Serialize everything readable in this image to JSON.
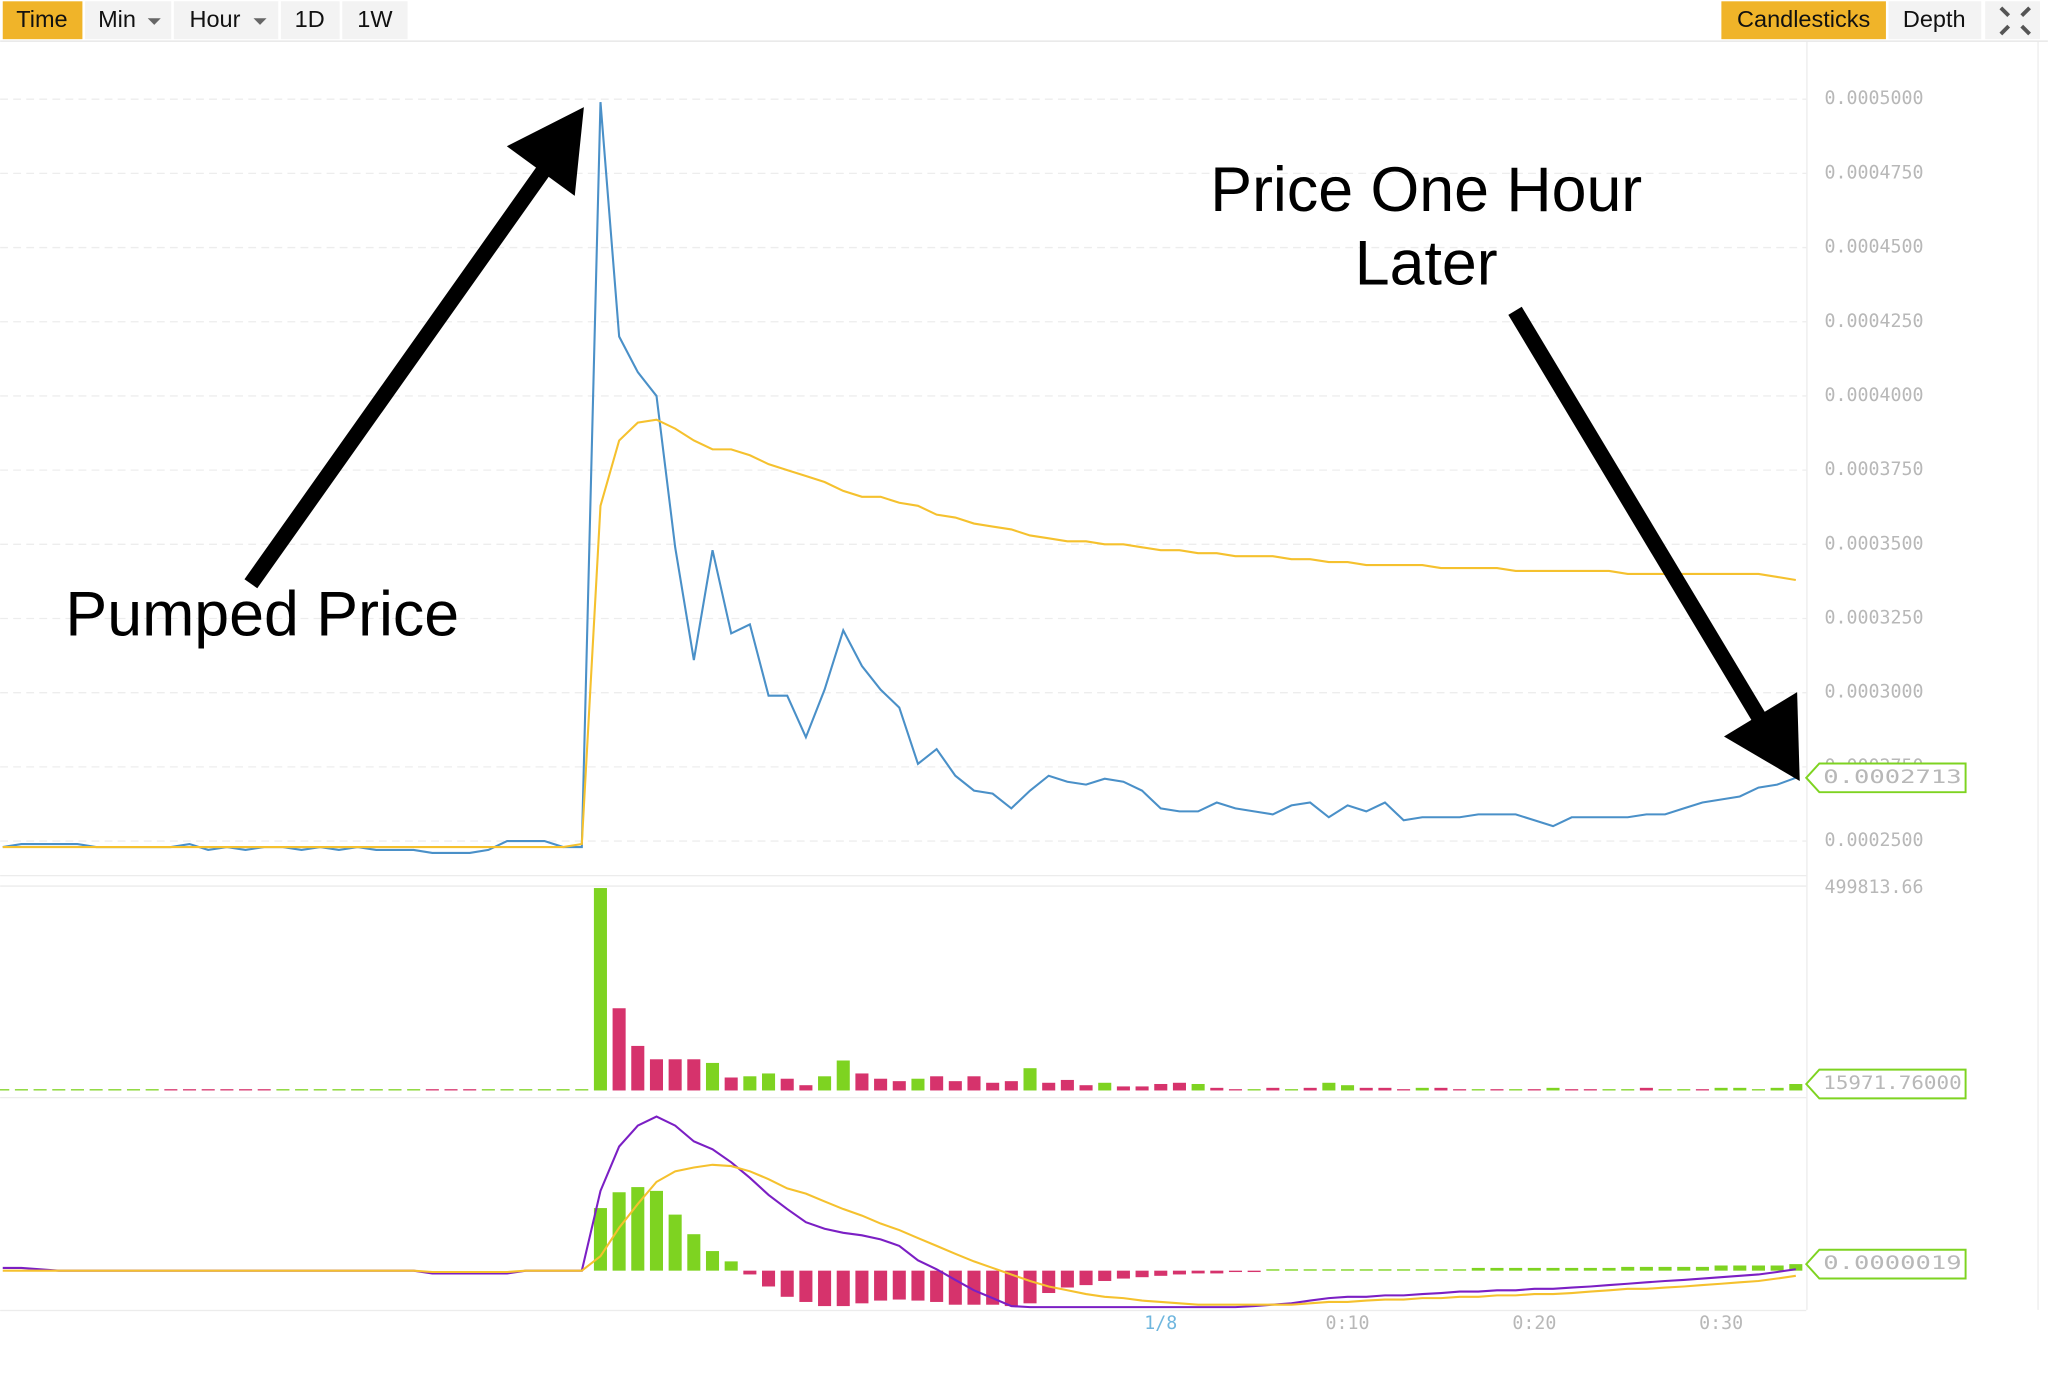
{
  "toolbar": {
    "left": [
      "Time",
      "Min",
      "Hour",
      "1D",
      "1W"
    ],
    "right": [
      "Candlesticks",
      "Depth"
    ]
  },
  "annotations": [
    "Pumped Price",
    "Price One Hour",
    "Later"
  ],
  "chart_data": [
    {
      "type": "line",
      "series": [
        {
          "color": "#4a90c8",
          "values": [
            0.000248,
            0.000249,
            0.000249,
            0.000249,
            0.000249,
            0.000248,
            0.000248,
            0.000248,
            0.000248,
            0.000248,
            0.000249,
            0.000247,
            0.000248,
            0.000247,
            0.000248,
            0.000248,
            0.000247,
            0.000248,
            0.000247,
            0.000248,
            0.000247,
            0.000247,
            0.000247,
            0.000246,
            0.000246,
            0.000246,
            0.000247,
            0.00025,
            0.00025,
            0.00025,
            0.000248,
            0.000248,
            0.000499,
            0.00042,
            0.000408,
            0.0004,
            0.000349,
            0.000311,
            0.000348,
            0.00032,
            0.000323,
            0.000299,
            0.000299,
            0.000285,
            0.000301,
            0.000321,
            0.000309,
            0.000301,
            0.000295,
            0.000276,
            0.000281,
            0.000272,
            0.000267,
            0.000266,
            0.000261,
            0.000267,
            0.000272,
            0.00027,
            0.000269,
            0.000271,
            0.00027,
            0.000267,
            0.000261,
            0.00026,
            0.00026,
            0.000263,
            0.000261,
            0.00026,
            0.000259,
            0.000262,
            0.000263,
            0.000258,
            0.000262,
            0.00026,
            0.000263,
            0.000257,
            0.000258,
            0.000258,
            0.000258,
            0.000259,
            0.000259,
            0.000259,
            0.000257,
            0.000255,
            0.000258,
            0.000258,
            0.000258,
            0.000258,
            0.000259,
            0.000259,
            0.000261,
            0.000263,
            0.000264,
            0.000265,
            0.000268,
            0.000269,
            0.0002713
          ]
        },
        {
          "color": "#f5c12e",
          "values": [
            0.000248,
            0.000248,
            0.000248,
            0.000248,
            0.000248,
            0.000248,
            0.000248,
            0.000248,
            0.000248,
            0.000248,
            0.000248,
            0.000248,
            0.000248,
            0.000248,
            0.000248,
            0.000248,
            0.000248,
            0.000248,
            0.000248,
            0.000248,
            0.000248,
            0.000248,
            0.000248,
            0.000248,
            0.000248,
            0.000248,
            0.000248,
            0.000248,
            0.000248,
            0.000248,
            0.000248,
            0.000249,
            0.000363,
            0.000385,
            0.000391,
            0.000392,
            0.000389,
            0.000385,
            0.000382,
            0.000382,
            0.00038,
            0.000377,
            0.000375,
            0.000373,
            0.000371,
            0.000368,
            0.000366,
            0.000366,
            0.000364,
            0.000363,
            0.00036,
            0.000359,
            0.000357,
            0.000356,
            0.000355,
            0.000353,
            0.000352,
            0.000351,
            0.000351,
            0.00035,
            0.00035,
            0.000349,
            0.000348,
            0.000348,
            0.000347,
            0.000347,
            0.000346,
            0.000346,
            0.000346,
            0.000345,
            0.000345,
            0.000344,
            0.000344,
            0.000343,
            0.000343,
            0.000343,
            0.000343,
            0.000342,
            0.000342,
            0.000342,
            0.000342,
            0.000341,
            0.000341,
            0.000341,
            0.000341,
            0.000341,
            0.000341,
            0.00034,
            0.00034,
            0.00034,
            0.00034,
            0.00034,
            0.00034,
            0.00034,
            0.00034,
            0.000339,
            0.000338
          ]
        }
      ],
      "ylim": [
        0.000239,
        0.000519
      ],
      "yticks": [
        {
          "value": 0.00025,
          "label": "0.0002500"
        },
        {
          "value": 0.000275,
          "label": "0.0002750"
        },
        {
          "value": 0.0003,
          "label": "0.0003000"
        },
        {
          "value": 0.000325,
          "label": "0.0003250"
        },
        {
          "value": 0.00035,
          "label": "0.0003500"
        },
        {
          "value": 0.000375,
          "label": "0.0003750"
        },
        {
          "value": 0.0004,
          "label": "0.0004000"
        },
        {
          "value": 0.000425,
          "label": "0.0004250"
        },
        {
          "value": 0.00045,
          "label": "0.0004500"
        },
        {
          "value": 0.000475,
          "label": "0.0004750"
        },
        {
          "value": 0.0005,
          "label": "0.0005000"
        }
      ],
      "grid": true,
      "current": {
        "value": 0.0002713,
        "label": "0.0002713"
      }
    },
    {
      "type": "bar",
      "values": [
        3200,
        3200,
        3200,
        3200,
        3200,
        3200,
        3200,
        3200,
        3200,
        3200,
        3200,
        3200,
        3200,
        3200,
        3200,
        3200,
        3200,
        3200,
        3200,
        3200,
        3200,
        3200,
        3200,
        3200,
        3200,
        3200,
        3200,
        3200,
        3200,
        3200,
        3200,
        3200,
        499813.66,
        203000,
        110000,
        77000,
        77000,
        77000,
        68000,
        32000,
        35000,
        42000,
        29000,
        13000,
        35000,
        74000,
        42000,
        29000,
        23000,
        29000,
        35000,
        23000,
        35000,
        19000,
        23000,
        55000,
        19000,
        26000,
        13000,
        19000,
        10000,
        10000,
        16000,
        19000,
        16000,
        6500,
        3200,
        3200,
        6500,
        3200,
        6500,
        19000,
        13000,
        6500,
        6500,
        3200,
        6500,
        6500,
        3200,
        3200,
        3200,
        3200,
        3200,
        6500,
        3200,
        3200,
        3200,
        3200,
        6500,
        3200,
        3200,
        3200,
        6500,
        6500,
        3200,
        6500,
        15971.76
      ],
      "colors": [
        "#7ed321",
        "#7ed321",
        "#7ed321",
        "#7ed321",
        "#7ed321",
        "#7ed321",
        "#7ed321",
        "#7ed321",
        "#7ed321",
        "#d6336c",
        "#d6336c",
        "#d6336c",
        "#d6336c",
        "#d6336c",
        "#d6336c",
        "#7ed321",
        "#7ed321",
        "#7ed321",
        "#7ed321",
        "#7ed321",
        "#7ed321",
        "#7ed321",
        "#7ed321",
        "#d6336c",
        "#d6336c",
        "#d6336c",
        "#7ed321",
        "#7ed321",
        "#7ed321",
        "#7ed321",
        "#7ed321",
        "#7ed321",
        "#7ed321",
        "#d6336c",
        "#d6336c",
        "#d6336c",
        "#d6336c",
        "#d6336c",
        "#7ed321",
        "#d6336c",
        "#7ed321",
        "#7ed321",
        "#d6336c",
        "#d6336c",
        "#7ed321",
        "#7ed321",
        "#d6336c",
        "#d6336c",
        "#d6336c",
        "#7ed321",
        "#d6336c",
        "#d6336c",
        "#d6336c",
        "#d6336c",
        "#d6336c",
        "#7ed321",
        "#d6336c",
        "#d6336c",
        "#d6336c",
        "#7ed321",
        "#d6336c",
        "#d6336c",
        "#d6336c",
        "#d6336c",
        "#7ed321",
        "#d6336c",
        "#d6336c",
        "#7ed321",
        "#d6336c",
        "#7ed321",
        "#d6336c",
        "#7ed321",
        "#7ed321",
        "#d6336c",
        "#d6336c",
        "#d6336c",
        "#7ed321",
        "#d6336c",
        "#d6336c",
        "#7ed321",
        "#d6336c",
        "#7ed321",
        "#d6336c",
        "#7ed321",
        "#d6336c",
        "#d6336c",
        "#7ed321",
        "#7ed321",
        "#d6336c",
        "#7ed321",
        "#7ed321",
        "#d6336c",
        "#7ed321",
        "#7ed321",
        "#7ed321",
        "#7ed321",
        "#7ed321"
      ],
      "ylim": [
        0,
        499813.66
      ],
      "yticks": [
        499813.66
      ],
      "current": {
        "value": 15971.76,
        "label": "15971.76000"
      }
    },
    {
      "type": "macd",
      "categories": [
        null,
        null,
        null,
        null,
        null,
        null,
        null,
        null,
        null,
        null,
        null,
        null,
        null,
        null,
        null,
        null,
        null,
        null,
        null,
        null,
        null,
        null,
        null,
        null,
        null,
        null,
        null,
        null,
        null,
        null,
        null,
        null,
        null,
        null,
        null,
        null,
        null,
        null,
        null,
        null,
        null,
        null,
        null,
        null,
        null,
        null,
        null,
        null,
        null,
        null,
        null,
        null,
        null,
        null,
        null,
        null,
        null,
        null,
        null,
        null,
        null,
        null,
        "1/8",
        null,
        null,
        null,
        null,
        null,
        null,
        null,
        null,
        null,
        "0:10",
        null,
        null,
        null,
        null,
        null,
        null,
        null,
        null,
        null,
        "0:20",
        null,
        null,
        null,
        null,
        null,
        null,
        null,
        null,
        null,
        "0:30",
        null,
        null,
        null,
        null
      ],
      "bars": [
        0,
        0,
        0,
        0,
        0,
        0,
        0,
        0,
        0,
        0,
        0,
        0,
        0,
        0,
        0,
        0,
        0,
        0,
        0,
        0,
        0,
        0,
        0,
        0,
        0,
        0,
        0,
        0,
        0,
        0,
        0,
        0,
        1.82e-05,
        2.28e-05,
        2.43e-05,
        2.32e-05,
        1.63e-05,
        1.06e-05,
        5.7e-06,
        2.7e-06,
        -1.1e-06,
        -4.6e-06,
        -7.6e-06,
        -9.1e-06,
        -1.03e-05,
        -1.03e-05,
        -9.5e-06,
        -8.7e-06,
        -8.4e-06,
        -8.7e-06,
        -9.1e-06,
        -9.9e-06,
        -9.9e-06,
        -9.9e-06,
        -1.03e-05,
        -9.5e-06,
        -6.5e-06,
        -4.9e-06,
        -4.2e-06,
        -3e-06,
        -2.3e-06,
        -1.9e-06,
        -1.5e-06,
        -1.1e-06,
        -8e-07,
        -8e-07,
        -4e-07,
        -4e-07,
        4e-07,
        4e-07,
        4e-07,
        4e-07,
        4e-07,
        4e-07,
        4e-07,
        4e-07,
        4e-07,
        4e-07,
        4e-07,
        8e-07,
        8e-07,
        8e-07,
        8e-07,
        8e-07,
        8e-07,
        8e-07,
        8e-07,
        1.1e-06,
        1.1e-06,
        1.1e-06,
        1.1e-06,
        1.1e-06,
        1.5e-06,
        1.5e-06,
        1.5e-06,
        1.5e-06,
        1.9e-06
      ],
      "up_color": "#7ed321",
      "down_color": "#d6336c",
      "series": [
        {
          "color": "#7b1fc4",
          "values": [
            8e-07,
            8e-07,
            4e-07,
            0,
            0,
            0,
            0,
            0,
            0,
            0,
            0,
            0,
            0,
            0,
            0,
            0,
            0,
            0,
            0,
            0,
            0,
            0,
            0,
            -8e-07,
            -8e-07,
            -8e-07,
            -8e-07,
            -8e-07,
            0,
            0,
            0,
            0,
            2.32e-05,
            3.61e-05,
            4.22e-05,
            4.48e-05,
            4.22e-05,
            3.76e-05,
            3.53e-05,
            3.15e-05,
            2.7e-05,
            2.2e-05,
            1.79e-05,
            1.41e-05,
            1.22e-05,
            1.1e-05,
            1.03e-05,
            9.1e-06,
            7.2e-06,
            3e-06,
            4e-07,
            -2.7e-06,
            -5.7e-06,
            -8e-06,
            -1.03e-05,
            -1.06e-05,
            -1.06e-05,
            -1.06e-05,
            -1.06e-05,
            -1.06e-05,
            -1.06e-05,
            -1.06e-05,
            -1.06e-05,
            -1.06e-05,
            -1.06e-05,
            -1.06e-05,
            -1.06e-05,
            -1.03e-05,
            -9.9e-06,
            -9.5e-06,
            -8.7e-06,
            -8e-06,
            -7.6e-06,
            -7.6e-06,
            -7.2e-06,
            -7.2e-06,
            -6.8e-06,
            -6.5e-06,
            -6.1e-06,
            -6.1e-06,
            -5.7e-06,
            -5.7e-06,
            -5.3e-06,
            -5.3e-06,
            -4.9e-06,
            -4.6e-06,
            -4.2e-06,
            -3.8e-06,
            -3.4e-06,
            -3e-06,
            -2.7e-06,
            -2.3e-06,
            -1.9e-06,
            -1.5e-06,
            -1.1e-06,
            -4e-07,
            4e-07
          ]
        },
        {
          "color": "#f5c12e",
          "values": [
            0,
            0,
            0,
            0,
            0,
            0,
            0,
            0,
            0,
            0,
            0,
            0,
            0,
            0,
            0,
            0,
            0,
            0,
            0,
            0,
            0,
            0,
            0,
            -4e-07,
            -4e-07,
            -4e-07,
            -4e-07,
            -4e-07,
            0,
            0,
            0,
            0,
            4.2e-06,
            1.25e-05,
            1.94e-05,
            2.58e-05,
            2.89e-05,
            3e-05,
            3.08e-05,
            3.04e-05,
            2.89e-05,
            2.66e-05,
            2.39e-05,
            2.24e-05,
            2.01e-05,
            1.79e-05,
            1.6e-05,
            1.37e-05,
            1.18e-05,
            9.5e-06,
            7.2e-06,
            4.9e-06,
            2.7e-06,
            8e-07,
            -1.1e-06,
            -3e-06,
            -4.6e-06,
            -5.7e-06,
            -6.8e-06,
            -7.6e-06,
            -8e-06,
            -8.7e-06,
            -9.1e-06,
            -9.5e-06,
            -9.9e-06,
            -9.9e-06,
            -9.9e-06,
            -9.9e-06,
            -9.9e-06,
            -9.9e-06,
            -9.5e-06,
            -9.1e-06,
            -9.1e-06,
            -8.7e-06,
            -8.4e-06,
            -8.4e-06,
            -8e-06,
            -8e-06,
            -7.6e-06,
            -7.6e-06,
            -7.2e-06,
            -7.2e-06,
            -6.8e-06,
            -6.8e-06,
            -6.5e-06,
            -6.1e-06,
            -5.7e-06,
            -5.3e-06,
            -5.3e-06,
            -4.9e-06,
            -4.6e-06,
            -4.2e-06,
            -3.8e-06,
            -3.4e-06,
            -3e-06,
            -2.3e-06,
            -1.5e-06
          ]
        }
      ],
      "ylim": [
        -1.14e-05,
        4.86e-05
      ],
      "current": {
        "value": 1.9e-06,
        "label": "0.0000019"
      }
    }
  ]
}
